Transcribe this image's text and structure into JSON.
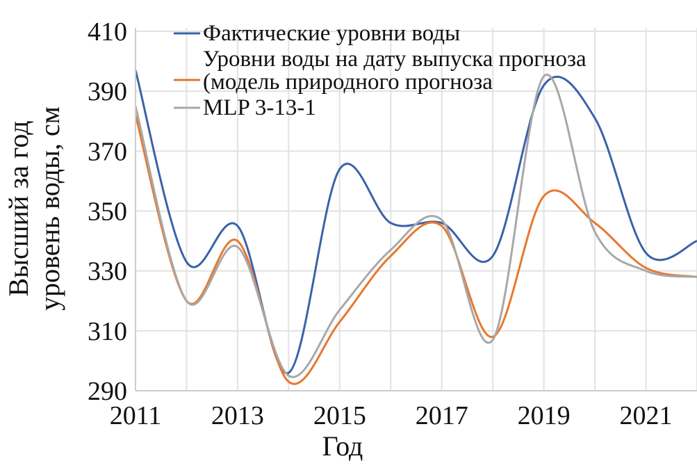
{
  "chart_data": {
    "type": "line",
    "title": "",
    "xlabel": "Год",
    "ylabel_lines": [
      "Высший за год",
      "уровень воды, см"
    ],
    "x": [
      2011,
      2012,
      2013,
      2014,
      2015,
      2016,
      2017,
      2018,
      2019,
      2020,
      2021,
      2022
    ],
    "xlim": [
      2011,
      2022
    ],
    "ylim": [
      290,
      410
    ],
    "xticks": [
      "2011",
      "2013",
      "2015",
      "2017",
      "2019",
      "2021"
    ],
    "yticks": [
      "290",
      "310",
      "330",
      "350",
      "370",
      "390",
      "410"
    ],
    "grid": true,
    "legend_position": "top-center",
    "series": [
      {
        "name": "Фактические уровни воды",
        "color": "#3a62a8",
        "values": [
          397,
          333,
          345,
          296,
          364,
          346,
          346,
          335,
          392,
          381,
          336,
          340
        ]
      },
      {
        "name": "Уровни воды на дату выпуска прогноза (модель природного прогноза",
        "legend_lines": [
          "Уровни воды на дату выпуска прогноза",
          "(модель природного прогноза"
        ],
        "color": "#e8772e",
        "values": [
          382,
          320,
          340,
          293,
          313,
          335,
          345,
          308,
          355,
          346,
          331,
          328
        ]
      },
      {
        "name": "MLP 3-13-1",
        "color": "#a8a8a8",
        "values": [
          385,
          320,
          338,
          295,
          317,
          337,
          347,
          307,
          395,
          343,
          330,
          328
        ]
      }
    ]
  }
}
